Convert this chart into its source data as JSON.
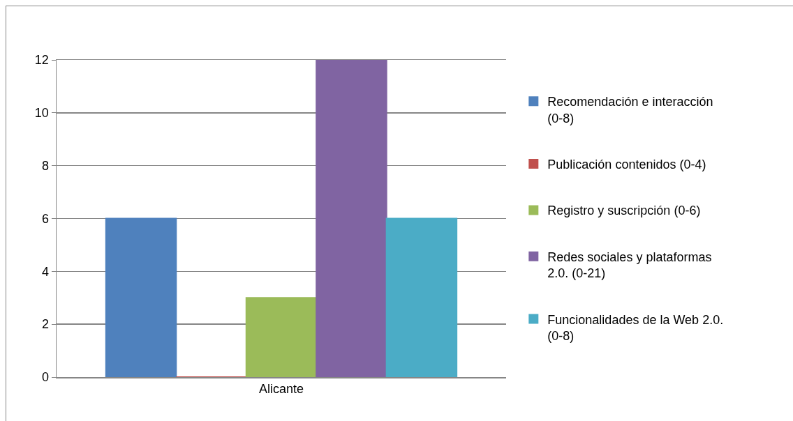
{
  "chart_data": {
    "type": "bar",
    "categories": [
      "Alicante"
    ],
    "series": [
      {
        "name": "Recomendación e interacción (0-8)",
        "color": "#4f81bd",
        "values": [
          6
        ]
      },
      {
        "name": "Publicación contenidos (0-4)",
        "color": "#c0504d",
        "values": [
          0
        ]
      },
      {
        "name": "Registro y suscripción (0-6)",
        "color": "#9bbb59",
        "values": [
          3
        ]
      },
      {
        "name": "Redes sociales y plataformas 2.0. (0-21)",
        "color": "#8064a2",
        "values": [
          12
        ]
      },
      {
        "name": "Funcionalidades de la Web 2.0. (0-8)",
        "color": "#4bacc6",
        "values": [
          6
        ]
      }
    ],
    "ylim": [
      0,
      12
    ],
    "yticks": [
      0,
      2,
      4,
      6,
      8,
      10,
      12
    ],
    "grid": "y",
    "legend": "right"
  }
}
